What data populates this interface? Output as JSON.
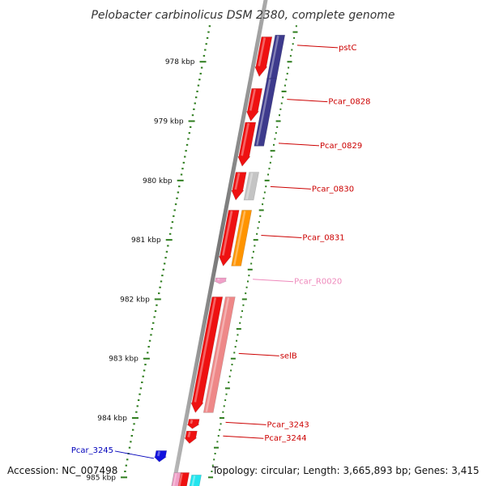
{
  "title": "Pelobacter carbinolicus DSM 2380, complete genome",
  "footer": {
    "accession": "Accession: NC_007498",
    "topology": "Topology: circular; Length: 3,665,893 bp; Genes: 3,415"
  },
  "colors": {
    "backbone": "#888888",
    "scale_ticks": "#2e7d1e",
    "gene_red": "#ee1111",
    "gene_purple": "#3d3a8c",
    "gene_grey": "#c4c4c4",
    "gene_orange": "#ff9400",
    "gene_pink": "#f0a0c8",
    "gene_salmon": "#ee8888",
    "gene_blue": "#1111dd",
    "gene_cyan": "#22e5ee",
    "label_red": "#cc0000",
    "label_pink": "#ee88bb",
    "label_blue": "#0000bb"
  },
  "scale_labels": [
    {
      "text": "978 kbp",
      "pos": 978
    },
    {
      "text": "979 kbp",
      "pos": 979
    },
    {
      "text": "980 kbp",
      "pos": 980
    },
    {
      "text": "981 kbp",
      "pos": 981
    },
    {
      "text": "982 kbp",
      "pos": 982
    },
    {
      "text": "983 kbp",
      "pos": 983
    },
    {
      "text": "984 kbp",
      "pos": 984
    },
    {
      "text": "985 kbp",
      "pos": 985
    }
  ],
  "features": [
    {
      "id": "f-top-cds",
      "track": "cds",
      "start": 977.58,
      "end": 978.25,
      "color": "gene_red",
      "arrow": true
    },
    {
      "id": "f-top-gene",
      "track": "gene",
      "start": 977.55,
      "end": 978.3,
      "color": "gene_purple",
      "arrow": false
    },
    {
      "id": "f-0828-cds",
      "track": "cds",
      "start": 978.45,
      "end": 979.0,
      "color": "gene_red",
      "arrow": true
    },
    {
      "id": "f-0828-gene",
      "track": "gene",
      "start": 978.28,
      "end": 979.42,
      "color": "gene_purple",
      "arrow": false
    },
    {
      "id": "f-0829-cds",
      "track": "cds",
      "start": 979.02,
      "end": 979.76,
      "color": "gene_red",
      "arrow": true
    },
    {
      "id": "f-0830-cds",
      "track": "cds",
      "start": 979.86,
      "end": 980.33,
      "color": "gene_red",
      "arrow": true
    },
    {
      "id": "f-0830-gene",
      "track": "gene",
      "start": 979.86,
      "end": 980.33,
      "color": "gene_grey",
      "arrow": false
    },
    {
      "id": "f-0831-cds",
      "track": "cds",
      "start": 980.5,
      "end": 981.44,
      "color": "gene_red",
      "arrow": true
    },
    {
      "id": "f-0831-gene",
      "track": "gene",
      "start": 980.5,
      "end": 981.44,
      "color": "gene_orange",
      "arrow": false
    },
    {
      "id": "f-r0020",
      "track": "cds",
      "start": 981.64,
      "end": 981.74,
      "color": "gene_pink",
      "arrow": true
    },
    {
      "id": "f-selb-cds",
      "track": "cds",
      "start": 981.96,
      "end": 983.91,
      "color": "gene_red",
      "arrow": true
    },
    {
      "id": "f-selb-gene",
      "track": "gene",
      "start": 981.96,
      "end": 983.91,
      "color": "gene_salmon",
      "arrow": false
    },
    {
      "id": "f-3243-cds",
      "track": "cds",
      "start": 984.02,
      "end": 984.18,
      "color": "gene_red",
      "arrow": true
    },
    {
      "id": "f-3244-cds",
      "track": "cds",
      "start": 984.22,
      "end": 984.43,
      "color": "gene_red",
      "arrow": true
    },
    {
      "id": "f-3245",
      "track": "rev",
      "start": 984.55,
      "end": 984.74,
      "color": "gene_blue",
      "arrow": true
    },
    {
      "id": "f-bottom-cds",
      "track": "cds",
      "start": 984.92,
      "end": 985.4,
      "color": "gene_red",
      "arrow": false
    },
    {
      "id": "f-bottom-pink",
      "track": "inner",
      "start": 984.92,
      "end": 985.4,
      "color": "gene_pink",
      "arrow": false
    },
    {
      "id": "f-bottom-cyan",
      "track": "gene",
      "start": 984.96,
      "end": 985.4,
      "color": "gene_cyan",
      "arrow": false
    }
  ],
  "gene_labels": [
    {
      "text": "pstC",
      "side": "right",
      "pos": 977.75,
      "color": "label_red"
    },
    {
      "text": "Pcar_0828",
      "side": "right",
      "pos": 978.66,
      "color": "label_red"
    },
    {
      "text": "Pcar_0829",
      "side": "right",
      "pos": 979.4,
      "color": "label_red"
    },
    {
      "text": "Pcar_0830",
      "side": "right",
      "pos": 980.13,
      "color": "label_red"
    },
    {
      "text": "Pcar_0831",
      "side": "right",
      "pos": 980.95,
      "color": "label_red"
    },
    {
      "text": "Pcar_R0020",
      "side": "right",
      "pos": 981.69,
      "color": "label_pink"
    },
    {
      "text": "selB",
      "side": "right",
      "pos": 982.94,
      "color": "label_red"
    },
    {
      "text": "Pcar_3243",
      "side": "right",
      "pos": 984.1,
      "color": "label_red"
    },
    {
      "text": "Pcar_3244",
      "side": "right",
      "pos": 984.33,
      "color": "label_red"
    },
    {
      "text": "Pcar_3245",
      "side": "left",
      "pos": 984.64,
      "color": "label_blue"
    }
  ]
}
